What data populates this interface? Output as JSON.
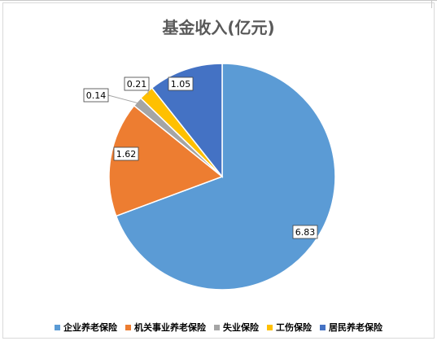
{
  "chart_data": {
    "type": "pie",
    "title": "基金收入(亿元)",
    "categories": [
      "企业养老保险",
      "机关事业养老保险",
      "失业保险",
      "工伤保险",
      "居民养老保险"
    ],
    "values": [
      6.83,
      1.62,
      0.14,
      0.21,
      1.05
    ],
    "colors": [
      "#5B9BD5",
      "#ED7D31",
      "#A5A5A5",
      "#FFC000",
      "#4472C4"
    ],
    "legend_position": "bottom"
  }
}
